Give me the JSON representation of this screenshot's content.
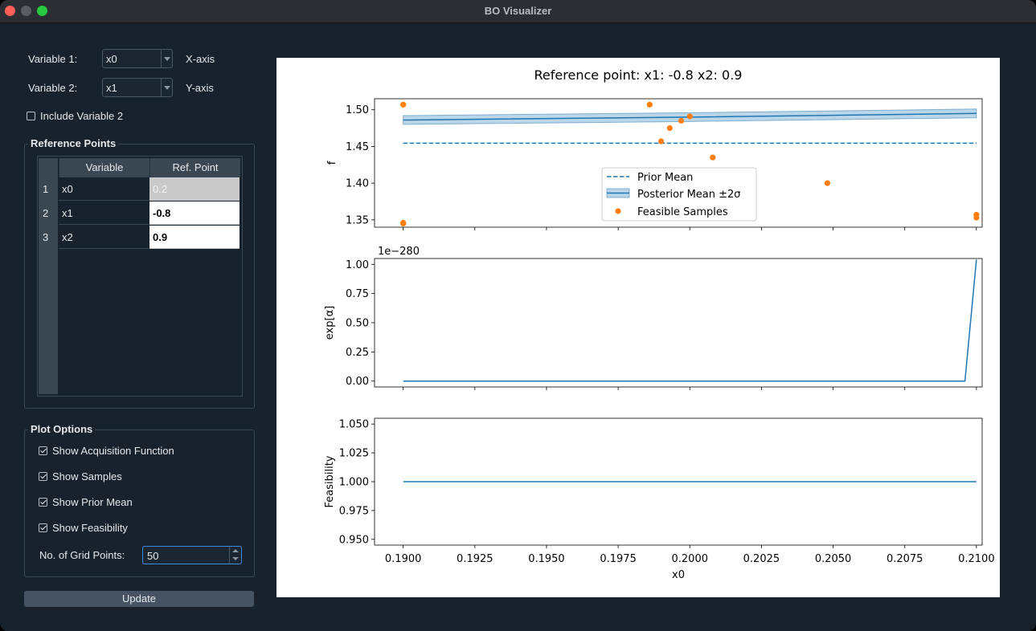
{
  "window": {
    "title": "BO Visualizer"
  },
  "variables": {
    "var1_label": "Variable 1:",
    "var1_value": "x0",
    "var1_axis": "X-axis",
    "var2_label": "Variable 2:",
    "var2_value": "x1",
    "var2_axis": "Y-axis",
    "include_var2": "Include Variable 2"
  },
  "reference_points": {
    "title": "Reference Points",
    "headers": [
      "Variable",
      "Ref. Point"
    ],
    "rows": [
      {
        "num": "1",
        "variable": "x0",
        "ref": "0.2"
      },
      {
        "num": "2",
        "variable": "x1",
        "ref": "-0.8"
      },
      {
        "num": "3",
        "variable": "x2",
        "ref": "0.9"
      }
    ]
  },
  "plot_options": {
    "title": "Plot Options",
    "show_acq": "Show Acquisition Function",
    "show_samples": "Show Samples",
    "show_prior": "Show Prior Mean",
    "show_feas": "Show Feasibility",
    "grid_label": "No. of Grid Points:",
    "grid_value": "50",
    "update": "Update"
  },
  "chart_data": [
    {
      "type": "line",
      "title": "Reference point: x1: -0.8 x2: 0.9",
      "ylabel": "f",
      "ylim": [
        1.34,
        1.515
      ],
      "yticks": [
        "1.35",
        "1.40",
        "1.45",
        "1.50"
      ],
      "xlim": [
        0.189,
        0.2102
      ],
      "prior_mean": {
        "name": "Prior Mean",
        "value": 1.4545
      },
      "posterior": {
        "name": "Posterior Mean ±2σ",
        "x": [
          0.19,
          0.2,
          0.21
        ],
        "y": [
          1.486,
          1.49,
          1.495
        ],
        "band": 0.006
      },
      "samples": {
        "name": "Feasible Samples",
        "x": [
          0.19,
          0.19,
          0.19,
          0.1986,
          0.199,
          0.1993,
          0.1997,
          0.2,
          0.2008,
          0.2048,
          0.21,
          0.21
        ],
        "y": [
          1.507,
          1.346,
          1.345,
          1.507,
          1.457,
          1.475,
          1.485,
          1.491,
          1.435,
          1.4,
          1.357,
          1.353
        ]
      },
      "legend": "center"
    },
    {
      "type": "line",
      "ylabel": "exp[α]",
      "offset_label": "1e−280",
      "ylim": [
        -0.05,
        1.05
      ],
      "yticks": [
        "0.00",
        "0.25",
        "0.50",
        "0.75",
        "1.00"
      ],
      "xlim": [
        0.189,
        0.2102
      ],
      "x": [
        0.19,
        0.2096,
        0.21
      ],
      "y": [
        0,
        0,
        1.04
      ]
    },
    {
      "type": "line",
      "ylabel": "Feasibility",
      "xlabel": "x0",
      "ylim": [
        0.945,
        1.055
      ],
      "yticks": [
        "0.950",
        "0.975",
        "1.000",
        "1.025",
        "1.050"
      ],
      "xlim": [
        0.189,
        0.2102
      ],
      "xticks": [
        "0.1900",
        "0.1925",
        "0.1950",
        "0.1975",
        "0.2000",
        "0.2025",
        "0.2050",
        "0.2075",
        "0.2100"
      ],
      "x": [
        0.19,
        0.21
      ],
      "y": [
        1,
        1
      ]
    }
  ]
}
